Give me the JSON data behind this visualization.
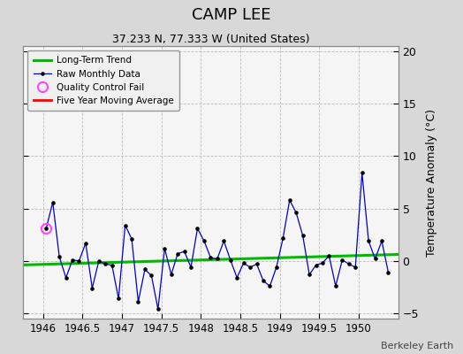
{
  "title": "CAMP LEE",
  "subtitle": "37.233 N, 77.333 W (United States)",
  "ylabel": "Temperature Anomaly (°C)",
  "credit": "Berkeley Earth",
  "xlim": [
    1945.75,
    1950.5
  ],
  "ylim": [
    -5.5,
    20.5
  ],
  "yticks": [
    -5,
    0,
    5,
    10,
    15,
    20
  ],
  "xticks": [
    1946,
    1946.5,
    1947,
    1947.5,
    1948,
    1948.5,
    1949,
    1949.5,
    1950
  ],
  "bg_color": "#d8d8d8",
  "plot_bg_color": "#f5f5f5",
  "raw_color": "#0000cc",
  "raw_marker_color": "#000000",
  "qc_color": "#ff44ff",
  "moving_avg_color": "#ff0000",
  "trend_color": "#00bb00",
  "raw_x": [
    1946.042,
    1946.125,
    1946.208,
    1946.292,
    1946.375,
    1946.458,
    1946.542,
    1946.625,
    1946.708,
    1946.792,
    1946.875,
    1946.958,
    1947.042,
    1947.125,
    1947.208,
    1947.292,
    1947.375,
    1947.458,
    1947.542,
    1947.625,
    1947.708,
    1947.792,
    1947.875,
    1947.958,
    1948.042,
    1948.125,
    1948.208,
    1948.292,
    1948.375,
    1948.458,
    1948.542,
    1948.625,
    1948.708,
    1948.792,
    1948.875,
    1948.958,
    1949.042,
    1949.125,
    1949.208,
    1949.292,
    1949.375,
    1949.458,
    1949.542,
    1949.625,
    1949.708,
    1949.792,
    1949.875,
    1949.958,
    1950.042,
    1950.125,
    1950.208,
    1950.292,
    1950.375
  ],
  "raw_y": [
    3.1,
    5.6,
    0.4,
    -1.6,
    0.1,
    0.0,
    1.7,
    -2.6,
    0.0,
    -0.3,
    -0.4,
    -3.6,
    3.4,
    2.1,
    -3.9,
    -0.8,
    -1.4,
    -4.6,
    1.2,
    -1.3,
    0.7,
    0.9,
    -0.6,
    3.1,
    1.9,
    0.3,
    0.2,
    1.9,
    0.1,
    -1.6,
    -0.2,
    -0.6,
    -0.3,
    -1.9,
    -2.4,
    -0.6,
    2.2,
    5.8,
    4.6,
    2.4,
    -1.3,
    -0.4,
    -0.2,
    0.5,
    -2.4,
    0.1,
    -0.3,
    -0.6,
    8.4,
    1.9,
    0.2,
    1.9,
    -1.1
  ],
  "qc_x": [
    1946.042
  ],
  "qc_y": [
    3.1
  ],
  "trend_x": [
    1945.75,
    1950.5
  ],
  "trend_y": [
    -0.38,
    0.62
  ]
}
